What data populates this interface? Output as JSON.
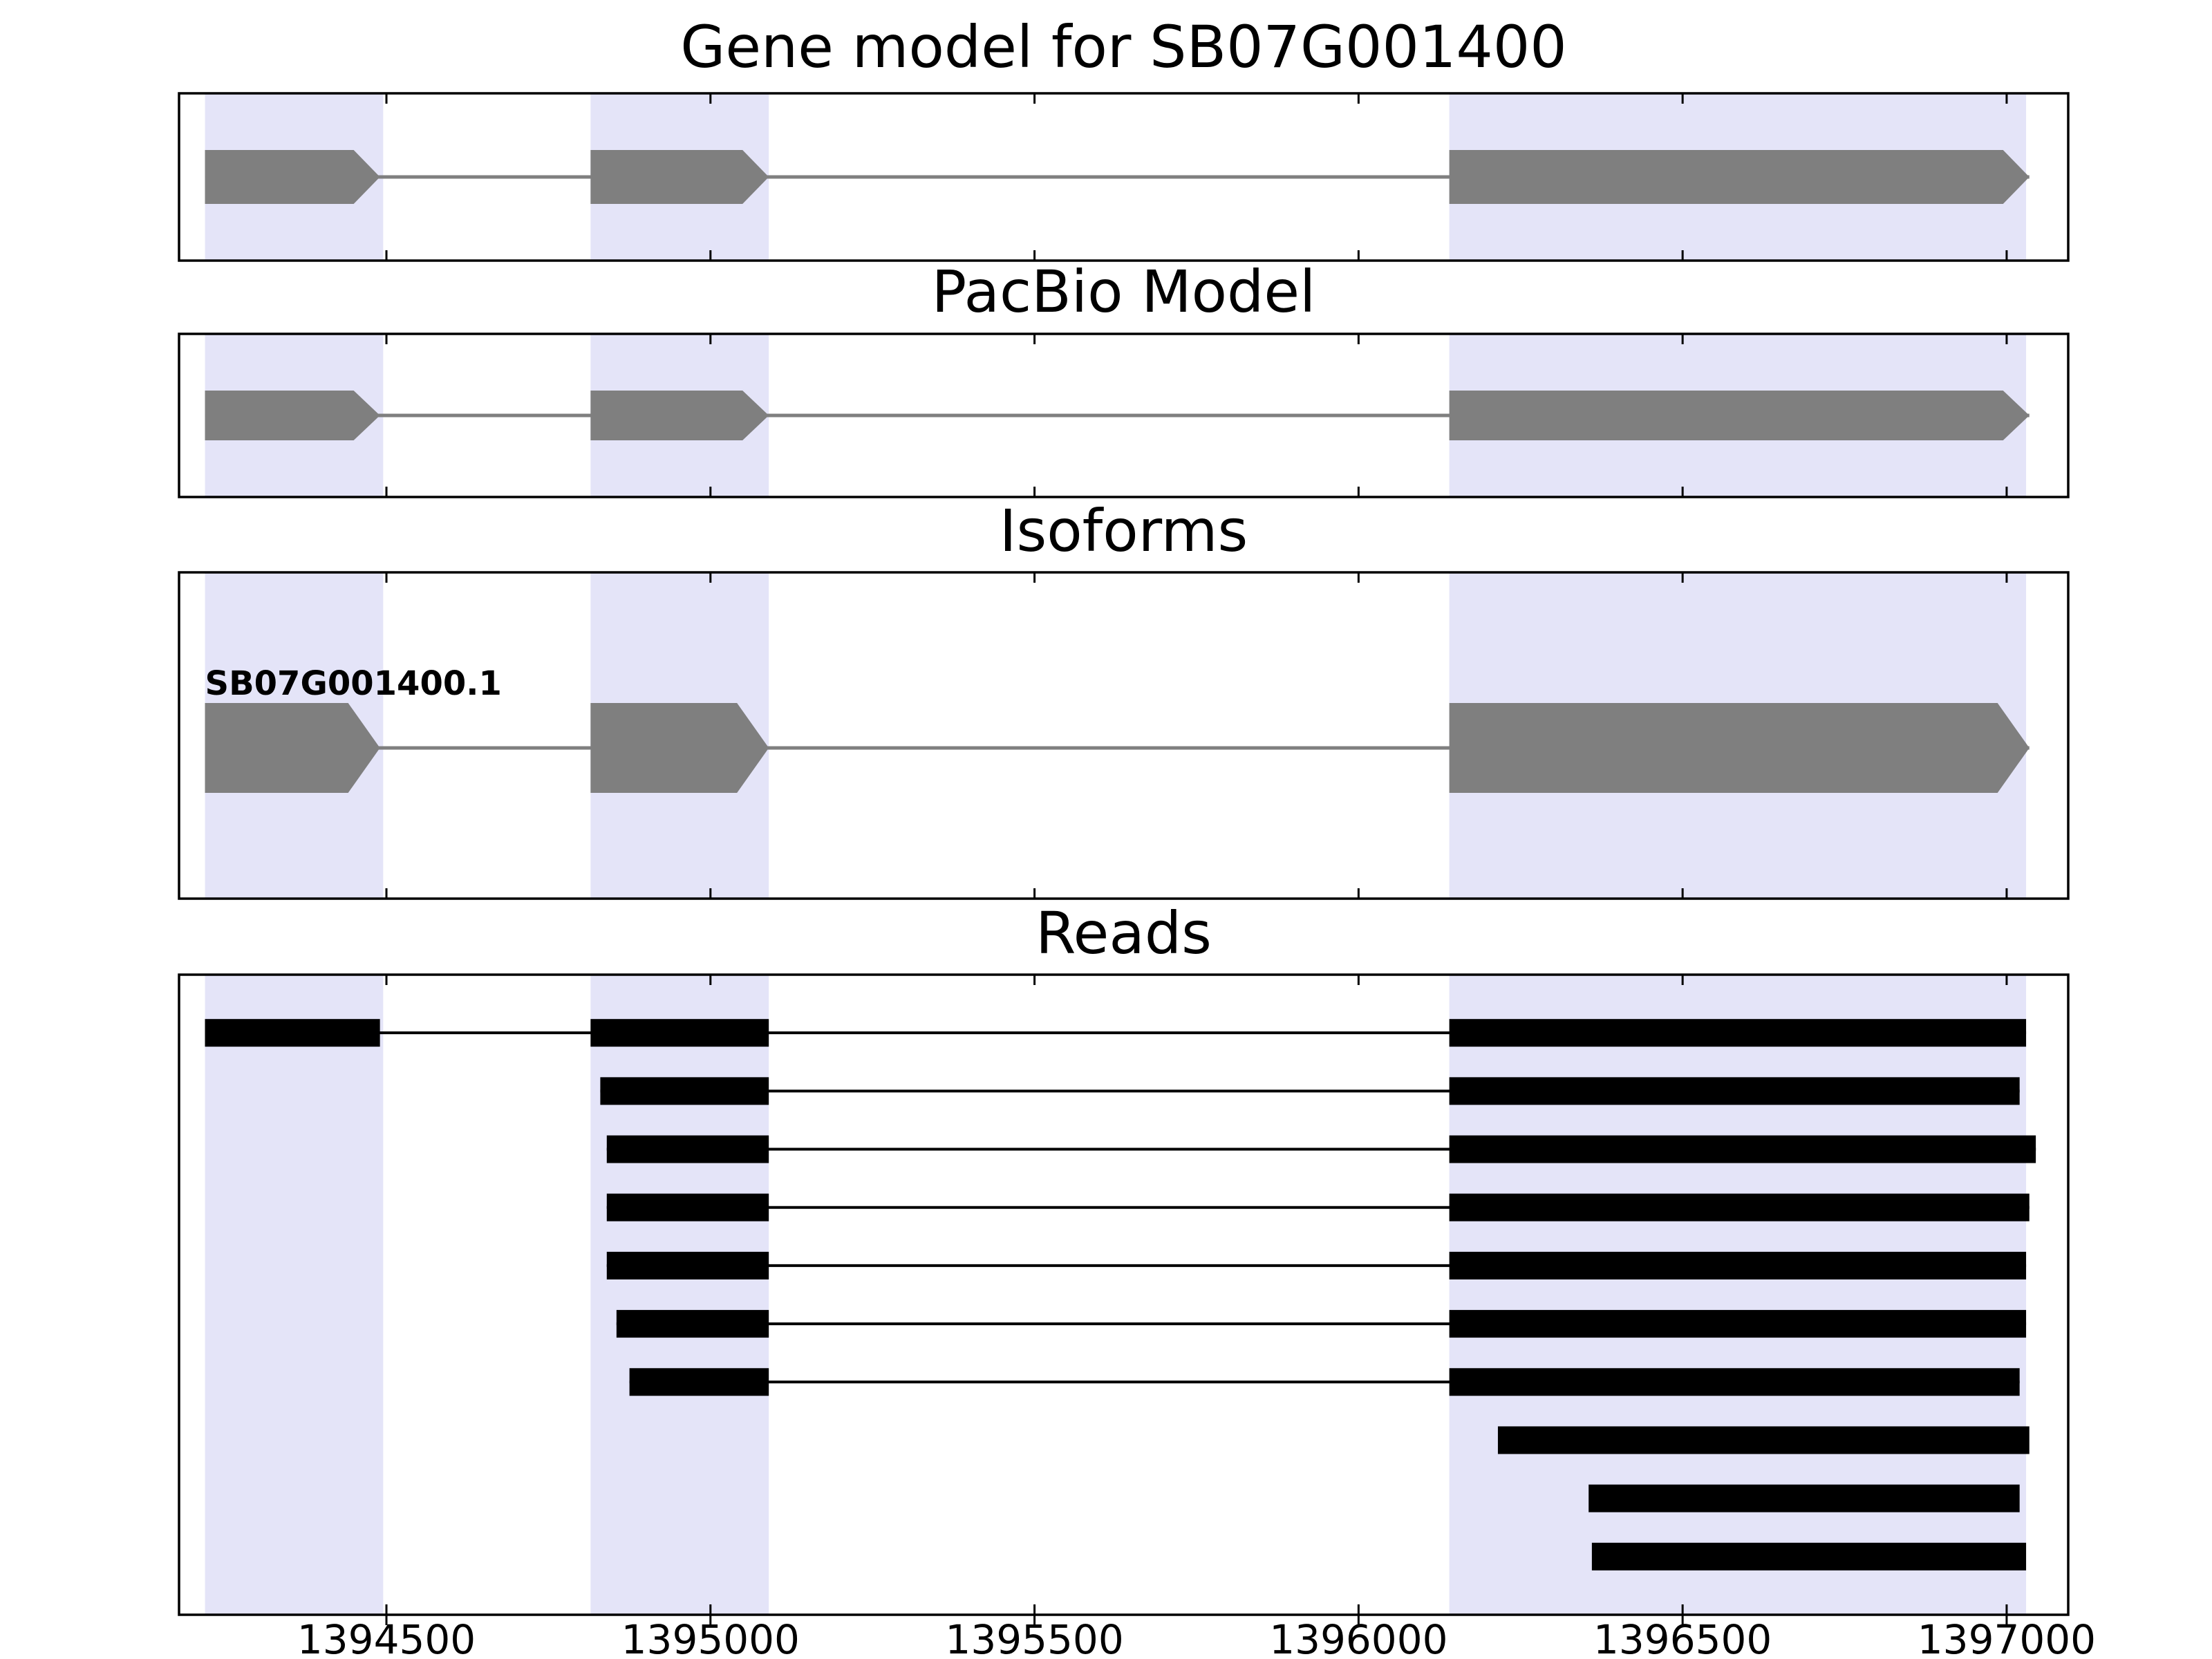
{
  "figure": {
    "background": "#ffffff",
    "highlight_color": "#e4e4f8",
    "exon_color": "#7f7f7f",
    "intron_color": "#7f7f7f",
    "read_color": "#000000",
    "border_color": "#000000"
  },
  "chart_data": {
    "type": "gene-model-tracks",
    "x_domain": [
      1394180,
      1397095
    ],
    "x_ticks": [
      1394500,
      1395000,
      1395500,
      1396000,
      1396500,
      1397000
    ],
    "x_tick_labels": [
      "1394500",
      "1395000",
      "1395500",
      "1396000",
      "1396500",
      "1397000"
    ],
    "highlight_regions": [
      [
        1394220,
        1394495
      ],
      [
        1394815,
        1395090
      ],
      [
        1396140,
        1397030
      ]
    ],
    "panels": [
      {
        "id": "gene-model",
        "title": "Gene model for SB07G001400",
        "kind": "model",
        "models": [
          {
            "label": "",
            "strand": "+",
            "exons": [
              [
                1394220,
                1394490
              ],
              [
                1394815,
                1395090
              ],
              [
                1396140,
                1397035
              ]
            ]
          }
        ]
      },
      {
        "id": "pacbio-model",
        "title": "PacBio Model",
        "kind": "model",
        "models": [
          {
            "label": "",
            "strand": "+",
            "exons": [
              [
                1394220,
                1394490
              ],
              [
                1394815,
                1395090
              ],
              [
                1396140,
                1397035
              ]
            ]
          }
        ]
      },
      {
        "id": "isoforms",
        "title": "Isoforms",
        "kind": "model",
        "models": [
          {
            "label": "SB07G001400.1",
            "strand": "+",
            "exons": [
              [
                1394220,
                1394490
              ],
              [
                1394815,
                1395090
              ],
              [
                1396140,
                1397035
              ]
            ]
          }
        ]
      },
      {
        "id": "reads",
        "title": "Reads",
        "kind": "reads",
        "reads": [
          {
            "blocks": [
              [
                1394220,
                1394490
              ],
              [
                1394815,
                1395090
              ],
              [
                1396140,
                1397030
              ]
            ]
          },
          {
            "blocks": [
              [
                1394830,
                1395090
              ],
              [
                1396140,
                1397020
              ]
            ]
          },
          {
            "blocks": [
              [
                1394840,
                1395090
              ],
              [
                1396140,
                1397045
              ]
            ]
          },
          {
            "blocks": [
              [
                1394840,
                1395090
              ],
              [
                1396140,
                1397035
              ]
            ]
          },
          {
            "blocks": [
              [
                1394840,
                1395090
              ],
              [
                1396140,
                1397030
              ]
            ]
          },
          {
            "blocks": [
              [
                1394855,
                1395090
              ],
              [
                1396140,
                1397030
              ]
            ]
          },
          {
            "blocks": [
              [
                1394875,
                1395090
              ],
              [
                1396140,
                1397020
              ]
            ]
          },
          {
            "blocks": [
              [
                1396215,
                1397035
              ]
            ]
          },
          {
            "blocks": [
              [
                1396355,
                1397020
              ]
            ]
          },
          {
            "blocks": [
              [
                1396360,
                1397030
              ]
            ]
          }
        ]
      }
    ]
  }
}
